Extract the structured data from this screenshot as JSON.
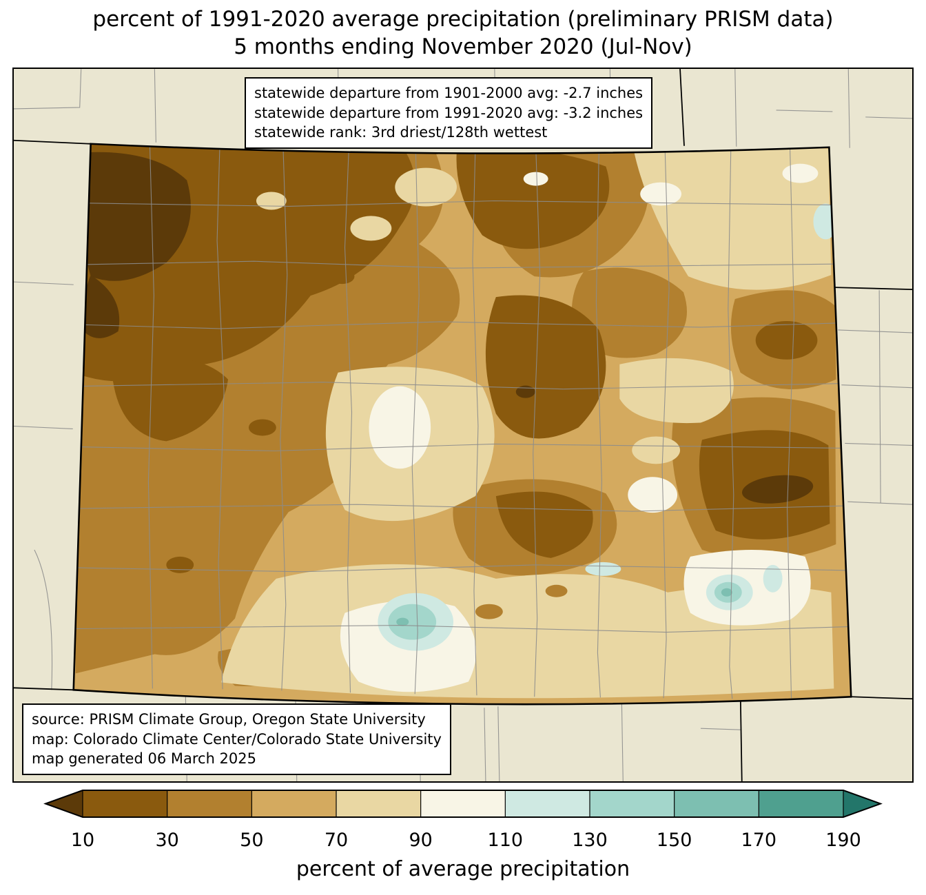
{
  "title": {
    "line1": "percent of 1991-2020 average precipitation (preliminary PRISM data)",
    "line2": "5 months ending November 2020 (Jul-Nov)"
  },
  "stats_box": {
    "lines": [
      "statewide departure from 1901-2000 avg: -2.7 inches",
      "statewide departure from 1991-2020 avg: -3.2 inches",
      "statewide rank: 3rd driest/128th wettest"
    ]
  },
  "source_box": {
    "lines": [
      "source: PRISM Climate Group, Oregon State University",
      "map: Colorado Climate Center/Colorado State University",
      "map generated 06 March 2025"
    ]
  },
  "colorbar": {
    "axis_label": "percent of average precipitation",
    "tick_labels": [
      "10",
      "30",
      "50",
      "70",
      "90",
      "110",
      "130",
      "150",
      "170",
      "190"
    ],
    "segment_colors": [
      "#5c3a09",
      "#8a5a0e",
      "#b2802f",
      "#d4aa5f",
      "#e9d7a3",
      "#f8f5e6",
      "#cfe9e2",
      "#a3d6cb",
      "#7dbfb1",
      "#4fa08f",
      "#23766a"
    ]
  },
  "map": {
    "background_color": "#eae6d1",
    "county_line_color": "#8c8c8c",
    "state_border_color": "#000000"
  }
}
